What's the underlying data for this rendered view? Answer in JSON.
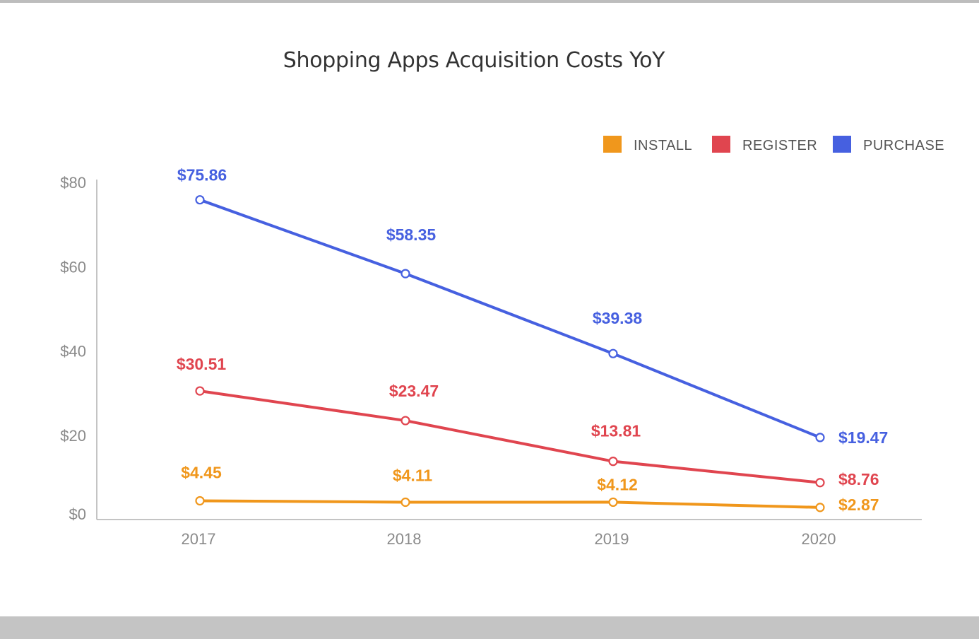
{
  "chart_data": {
    "type": "line",
    "title": "Shopping Apps Acquisition Costs YoY",
    "xlabel": "",
    "ylabel": "",
    "categories": [
      "2017",
      "2018",
      "2019",
      "2020"
    ],
    "ylim": [
      0,
      80
    ],
    "yticks": [
      0,
      20,
      40,
      60,
      80
    ],
    "ytick_labels": [
      "$0",
      "$20",
      "$40",
      "$60",
      "$80"
    ],
    "grid": false,
    "legend_position": "top-right",
    "series": [
      {
        "name": "INSTALL",
        "color": "#f0971c",
        "values": [
          4.45,
          4.11,
          4.12,
          2.87
        ],
        "labels": [
          "$4.45",
          "$4.11",
          "$4.12",
          "$2.87"
        ]
      },
      {
        "name": "REGISTER",
        "color": "#e0454f",
        "values": [
          30.51,
          23.47,
          13.81,
          8.76
        ],
        "labels": [
          "$30.51",
          "$23.47",
          "$13.81",
          "$8.76"
        ]
      },
      {
        "name": "PURCHASE",
        "color": "#4660e0",
        "values": [
          75.86,
          58.35,
          39.38,
          19.47
        ],
        "labels": [
          "$75.86",
          "$58.35",
          "$39.38",
          "$19.47"
        ]
      }
    ]
  }
}
